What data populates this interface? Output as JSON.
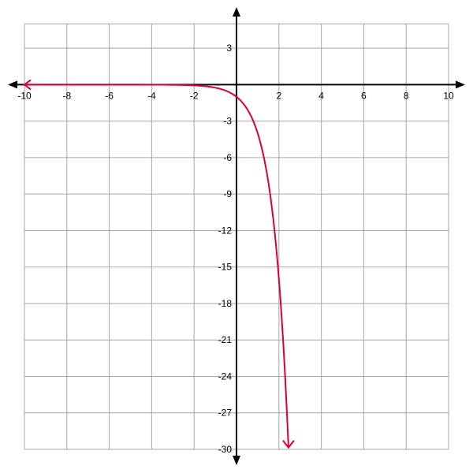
{
  "chart_data": {
    "type": "line",
    "title": "",
    "xlabel": "",
    "ylabel": "",
    "xlim": [
      -10,
      10
    ],
    "ylim": [
      -30,
      5
    ],
    "grid": true,
    "x_ticks": [
      -10,
      -8,
      -6,
      -4,
      -2,
      2,
      4,
      6,
      8,
      10
    ],
    "y_ticks": [
      3,
      -3,
      -6,
      -9,
      -12,
      -15,
      -18,
      -21,
      -24,
      -27,
      -30
    ],
    "x_tick_labels": [
      "-10",
      "-8",
      "-6",
      "-4",
      "-2",
      "2",
      "4",
      "6",
      "8",
      "10"
    ],
    "y_tick_labels": [
      "3",
      "-3",
      "-6",
      "-9",
      "-12",
      "-15",
      "-18",
      "-21",
      "-24",
      "-27",
      "-30"
    ],
    "series": [
      {
        "function": "y = -4^x",
        "x_range": [
          -10,
          2.45
        ],
        "color": "#d6003c",
        "points": [
          [
            -10,
            0
          ],
          [
            -4,
            -0.004
          ],
          [
            -2,
            -0.0625
          ],
          [
            -1,
            -0.25
          ],
          [
            0,
            -1
          ],
          [
            1,
            -4
          ],
          [
            1.5,
            -8
          ],
          [
            2,
            -16
          ],
          [
            2.45,
            -29.9
          ]
        ],
        "end_arrows": true
      }
    ],
    "axis_color": "#000000",
    "grid_color": "#a6a6a6"
  }
}
